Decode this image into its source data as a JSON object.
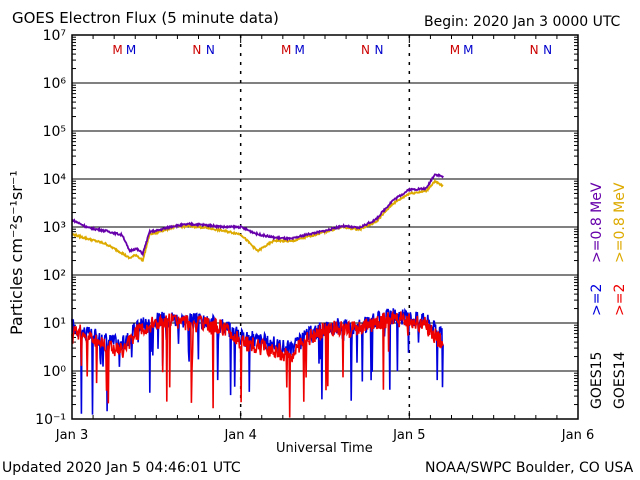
{
  "header": {
    "title": "GOES Electron Flux (5 minute data)",
    "begin": "Begin: 2020 Jan 3 0000 UTC"
  },
  "footer": {
    "updated": "Updated 2020 Jan  5 04:46:01 UTC",
    "credit": "NOAA/SWPC Boulder, CO USA"
  },
  "axes": {
    "xlabel": "Universal Time",
    "ylabel": "Particles cm⁻²s⁻¹sr⁻¹",
    "x_ticks": [
      "Jan 3",
      "Jan 4",
      "Jan 5",
      "Jan 6"
    ],
    "y_ticks": [
      "10⁷",
      "10⁶",
      "10⁵",
      "10⁴",
      "10³",
      "10²",
      "10¹",
      "10⁰",
      "10⁻¹"
    ]
  },
  "markers": {
    "mn_labels": [
      "M",
      "M",
      "N",
      "N",
      "M",
      "M",
      "N",
      "N",
      "M",
      "M",
      "N",
      "N"
    ],
    "colors": [
      "#cc0000",
      "#0000cc",
      "#cc0000",
      "#0000cc",
      "#cc0000",
      "#0000cc",
      "#cc0000",
      "#0000cc",
      "#cc0000",
      "#0000cc",
      "#cc0000",
      "#0000cc"
    ]
  },
  "legend": {
    "goes15": "GOES15",
    "goes14": "GOES14",
    "e2_15": ">=2",
    "e2_14": ">=2",
    "e08_15": ">=0.8 MeV",
    "e08_14": ">=0.8 MeV"
  },
  "chart_data": {
    "type": "line",
    "title": "GOES Electron Flux (5 minute data)",
    "xlabel": "Universal Time",
    "ylabel": "Particles cm-2 s-1 sr-1",
    "x_unit": "days since 2020 Jan 3 0000 UTC",
    "xlim": [
      0,
      3
    ],
    "ylim_log10": [
      -1,
      7
    ],
    "yscale": "log",
    "threshold_line": 1000,
    "series": [
      {
        "name": "GOES15 >=0.8 MeV",
        "color": "#6600aa",
        "x": [
          0,
          0.1,
          0.2,
          0.3,
          0.34,
          0.38,
          0.42,
          0.46,
          0.5,
          0.6,
          0.7,
          0.8,
          0.9,
          1.0,
          1.1,
          1.2,
          1.3,
          1.4,
          1.5,
          1.6,
          1.7,
          1.8,
          1.9,
          2.0,
          2.1,
          2.15,
          2.2
        ],
        "y_log10": [
          3.15,
          2.98,
          2.92,
          2.83,
          2.5,
          2.55,
          2.45,
          2.9,
          2.92,
          3.02,
          3.06,
          3.04,
          3.0,
          3.0,
          2.85,
          2.78,
          2.75,
          2.85,
          2.92,
          3.02,
          2.98,
          3.15,
          3.55,
          3.78,
          3.8,
          4.1,
          4.05
        ]
      },
      {
        "name": "GOES14 >=0.8 MeV",
        "color": "#ddaa00",
        "x": [
          0,
          0.1,
          0.2,
          0.3,
          0.34,
          0.38,
          0.42,
          0.46,
          0.5,
          0.6,
          0.7,
          0.8,
          0.9,
          1.0,
          1.1,
          1.2,
          1.3,
          1.4,
          1.5,
          1.6,
          1.7,
          1.8,
          1.9,
          2.0,
          2.1,
          2.15,
          2.2
        ],
        "y_log10": [
          2.85,
          2.75,
          2.65,
          2.45,
          2.35,
          2.42,
          2.3,
          2.85,
          2.88,
          3.0,
          3.02,
          2.98,
          2.92,
          2.85,
          2.5,
          2.72,
          2.7,
          2.8,
          2.9,
          3.0,
          2.95,
          3.1,
          3.48,
          3.7,
          3.75,
          3.95,
          3.85
        ]
      },
      {
        "name": "GOES15 >=2 MeV",
        "color": "#0000dd",
        "x": [
          0,
          0.1,
          0.2,
          0.3,
          0.4,
          0.5,
          0.6,
          0.7,
          0.8,
          0.9,
          1.0,
          1.1,
          1.2,
          1.3,
          1.4,
          1.5,
          1.6,
          1.7,
          1.8,
          1.9,
          2.0,
          2.1,
          2.2
        ],
        "y_log10": [
          0.95,
          0.75,
          0.65,
          0.55,
          0.95,
          1.05,
          1.1,
          1.05,
          1.0,
          0.95,
          0.7,
          0.65,
          0.55,
          0.45,
          0.75,
          0.9,
          0.95,
          0.9,
          1.05,
          1.15,
          1.1,
          1.05,
          0.7
        ]
      },
      {
        "name": "GOES14 >=2 MeV",
        "color": "#ee0000",
        "x": [
          0,
          0.1,
          0.2,
          0.3,
          0.4,
          0.5,
          0.6,
          0.7,
          0.8,
          0.9,
          1.0,
          1.1,
          1.2,
          1.3,
          1.4,
          1.5,
          1.6,
          1.7,
          1.8,
          1.9,
          2.0,
          2.1,
          2.2
        ],
        "y_log10": [
          0.9,
          0.7,
          0.55,
          0.4,
          0.9,
          1.0,
          1.05,
          1.0,
          0.95,
          0.9,
          0.6,
          0.5,
          0.45,
          0.3,
          0.7,
          0.85,
          0.9,
          0.85,
          1.0,
          1.1,
          1.05,
          0.95,
          0.55
        ]
      }
    ]
  }
}
